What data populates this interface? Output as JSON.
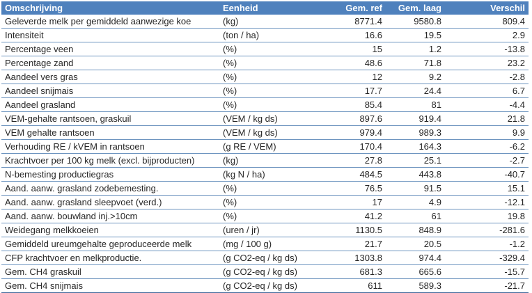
{
  "colors": {
    "header_bg": "#4f81bd",
    "header_text": "#ffffff",
    "row_border": "#6d94bf",
    "table_bottom_border": "#41699b",
    "body_text": "#262626"
  },
  "chart_data": {
    "type": "table",
    "columns": [
      {
        "key": "omschrijving",
        "label": "Omschrijving",
        "align": "left"
      },
      {
        "key": "eenheid",
        "label": "Eenheid",
        "align": "left"
      },
      {
        "key": "gem-ref",
        "label": "Gem. ref",
        "align": "right"
      },
      {
        "key": "gem-laag",
        "label": "Gem. laag",
        "align": "right"
      },
      {
        "key": "verschil",
        "label": "Verschil",
        "align": "right"
      }
    ],
    "rows": [
      [
        "Geleverde melk per gemiddeld aanwezige koe",
        "(kg)",
        "8771.4",
        "9580.8",
        "809.4"
      ],
      [
        "Intensiteit",
        "(ton / ha)",
        "16.6",
        "19.5",
        "2.9"
      ],
      [
        "Percentage veen",
        "(%)",
        "15",
        "1.2",
        "-13.8"
      ],
      [
        "Percentage zand",
        "(%)",
        "48.6",
        "71.8",
        "23.2"
      ],
      [
        "Aandeel vers gras",
        "(%)",
        "12",
        "9.2",
        "-2.8"
      ],
      [
        "Aandeel snijmais",
        "(%)",
        "17.7",
        "24.4",
        "6.7"
      ],
      [
        "Aandeel grasland",
        "(%)",
        "85.4",
        "81",
        "-4.4"
      ],
      [
        "VEM-gehalte rantsoen, graskuil",
        "(VEM / kg ds)",
        "897.6",
        "919.4",
        "21.8"
      ],
      [
        "VEM gehalte rantsoen",
        "(VEM / kg ds)",
        "979.4",
        "989.3",
        "9.9"
      ],
      [
        "Verhouding RE / kVEM in rantsoen",
        "(g RE / VEM)",
        "170.4",
        "164.3",
        "-6.2"
      ],
      [
        "Krachtvoer per 100 kg melk (excl. bijproducten)",
        "(kg)",
        "27.8",
        "25.1",
        "-2.7"
      ],
      [
        "N-bemesting productiegras",
        "(kg N / ha)",
        "484.5",
        "443.8",
        "-40.7"
      ],
      [
        "Aand. aanw. grasland zodebemesting.",
        "(%)",
        "76.5",
        "91.5",
        "15.1"
      ],
      [
        "Aand. aanw. grasland sleepvoet (verd.)",
        "(%)",
        "17",
        "4.9",
        "-12.1"
      ],
      [
        "Aand. aanw. bouwland inj.>10cm",
        "(%)",
        "41.2",
        "61",
        "19.8"
      ],
      [
        "Weidegang melkkoeien",
        "(uren / jr)",
        "1130.5",
        "848.9",
        "-281.6"
      ],
      [
        "Gemiddeld ureumgehalte geproduceerde melk",
        "(mg / 100 g)",
        "21.7",
        "20.5",
        "-1.2"
      ],
      [
        "CFP krachtvoer en melkproductie.",
        "(g CO2-eq / kg ds)",
        "1303.8",
        "974.4",
        "-329.4"
      ],
      [
        "Gem. CH4 graskuil",
        "(g CO2-eq / kg ds)",
        "681.3",
        "665.6",
        "-15.7"
      ],
      [
        "Gem. CH4 snijmais",
        "(g CO2-eq / kg ds)",
        "611",
        "589.3",
        "-21.7"
      ]
    ]
  }
}
